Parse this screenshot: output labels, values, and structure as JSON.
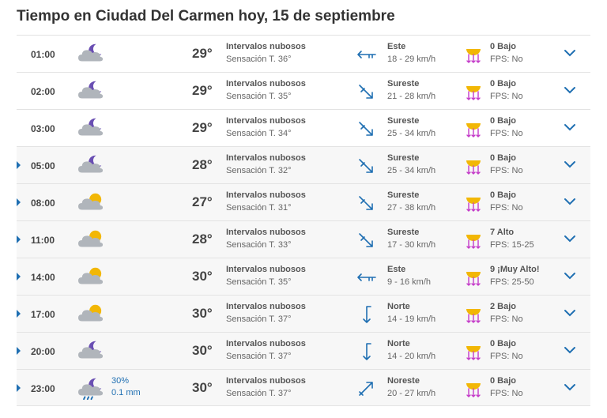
{
  "title": "Tiempo en Ciudad Del Carmen hoy, 15 de septiembre",
  "colors": {
    "accent": "#1f6fb2",
    "sun": "#f2b705",
    "cloud": "#b0b5bb",
    "moon": "#6a4fb3",
    "uv_arrows": "#c43cc9"
  },
  "rows": [
    {
      "time": "01:00",
      "expander": false,
      "sky": "night-cloudy",
      "rain_prob": "",
      "rain_mm": "",
      "temp": "29°",
      "condition": "Intervalos nubosos",
      "feels": "Sensación T. 36°",
      "wind_dir": "Este",
      "wind_speed": "18 - 29 km/h",
      "wind_icon": "arrow-east",
      "uv": "0 Bajo",
      "fps": "FPS: No"
    },
    {
      "time": "02:00",
      "expander": false,
      "sky": "night-cloudy",
      "rain_prob": "",
      "rain_mm": "",
      "temp": "29°",
      "condition": "Intervalos nubosos",
      "feels": "Sensación T. 35°",
      "wind_dir": "Sureste",
      "wind_speed": "21 - 28 km/h",
      "wind_icon": "arrow-southeast",
      "uv": "0 Bajo",
      "fps": "FPS: No"
    },
    {
      "time": "03:00",
      "expander": false,
      "sky": "night-cloudy",
      "rain_prob": "",
      "rain_mm": "",
      "temp": "29°",
      "condition": "Intervalos nubosos",
      "feels": "Sensación T. 34°",
      "wind_dir": "Sureste",
      "wind_speed": "25 - 34 km/h",
      "wind_icon": "arrow-southeast",
      "uv": "0 Bajo",
      "fps": "FPS: No"
    },
    {
      "time": "05:00",
      "expander": true,
      "sky": "night-cloudy",
      "rain_prob": "",
      "rain_mm": "",
      "temp": "28°",
      "condition": "Intervalos nubosos",
      "feels": "Sensación T. 32°",
      "wind_dir": "Sureste",
      "wind_speed": "25 - 34 km/h",
      "wind_icon": "arrow-southeast",
      "uv": "0 Bajo",
      "fps": "FPS: No"
    },
    {
      "time": "08:00",
      "expander": true,
      "sky": "day-cloudy",
      "rain_prob": "",
      "rain_mm": "",
      "temp": "27°",
      "condition": "Intervalos nubosos",
      "feels": "Sensación T. 31°",
      "wind_dir": "Sureste",
      "wind_speed": "27 - 38 km/h",
      "wind_icon": "arrow-southeast",
      "uv": "0 Bajo",
      "fps": "FPS: No"
    },
    {
      "time": "11:00",
      "expander": true,
      "sky": "day-cloudy",
      "rain_prob": "",
      "rain_mm": "",
      "temp": "28°",
      "condition": "Intervalos nubosos",
      "feels": "Sensación T. 33°",
      "wind_dir": "Sureste",
      "wind_speed": "17 - 30 km/h",
      "wind_icon": "arrow-southeast",
      "uv": "7 Alto",
      "fps": "FPS: 15-25"
    },
    {
      "time": "14:00",
      "expander": true,
      "sky": "day-cloudy",
      "rain_prob": "",
      "rain_mm": "",
      "temp": "30°",
      "condition": "Intervalos nubosos",
      "feels": "Sensación T. 35°",
      "wind_dir": "Este",
      "wind_speed": "9 - 16 km/h",
      "wind_icon": "arrow-east",
      "uv": "9 ¡Muy Alto!",
      "fps": "FPS: 25-50"
    },
    {
      "time": "17:00",
      "expander": true,
      "sky": "day-cloudy",
      "rain_prob": "",
      "rain_mm": "",
      "temp": "30°",
      "condition": "Intervalos nubosos",
      "feels": "Sensación T. 37°",
      "wind_dir": "Norte",
      "wind_speed": "14 - 19 km/h",
      "wind_icon": "arrow-north",
      "uv": "2 Bajo",
      "fps": "FPS: No"
    },
    {
      "time": "20:00",
      "expander": true,
      "sky": "night-cloudy",
      "rain_prob": "",
      "rain_mm": "",
      "temp": "30°",
      "condition": "Intervalos nubosos",
      "feels": "Sensación T. 37°",
      "wind_dir": "Norte",
      "wind_speed": "14 - 20 km/h",
      "wind_icon": "arrow-north",
      "uv": "0 Bajo",
      "fps": "FPS: No"
    },
    {
      "time": "23:00",
      "expander": true,
      "sky": "night-rain",
      "rain_prob": "30%",
      "rain_mm": "0.1 mm",
      "temp": "30°",
      "condition": "Intervalos nubosos",
      "feels": "Sensación T. 37°",
      "wind_dir": "Noreste",
      "wind_speed": "20 - 27 km/h",
      "wind_icon": "arrow-northeast",
      "uv": "0 Bajo",
      "fps": "FPS: No"
    }
  ]
}
